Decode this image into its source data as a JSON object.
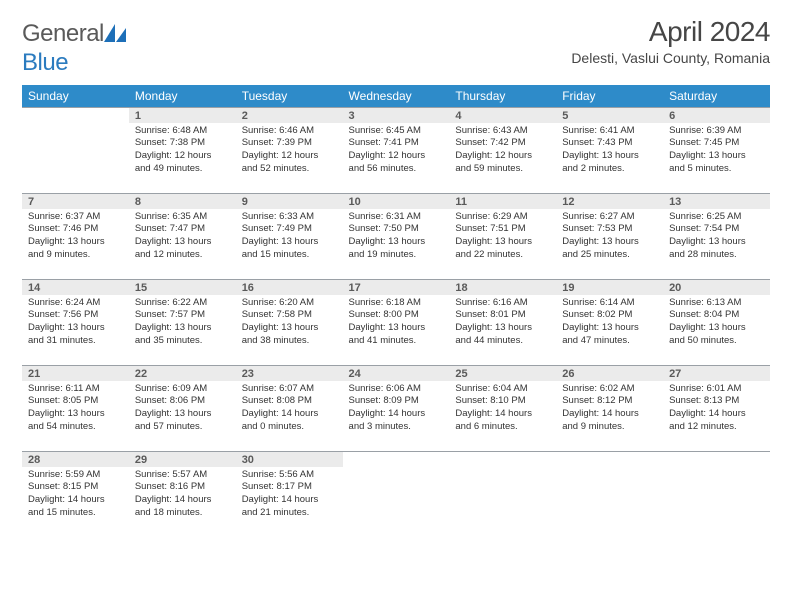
{
  "logo": {
    "text1": "General",
    "text2": "Blue"
  },
  "title": "April 2024",
  "subtitle": "Delesti, Vaslui County, Romania",
  "colors": {
    "header_bg": "#2e8bc9",
    "header_fg": "#ffffff",
    "daynum_bg": "#ebebeb",
    "daynum_border": "#9aa0a6",
    "text": "#333333",
    "title_color": "#464646"
  },
  "weekdays": [
    "Sunday",
    "Monday",
    "Tuesday",
    "Wednesday",
    "Thursday",
    "Friday",
    "Saturday"
  ],
  "weeks": [
    [
      {
        "n": "",
        "sunrise": "",
        "sunset": "",
        "daylight": ""
      },
      {
        "n": "1",
        "sunrise": "Sunrise: 6:48 AM",
        "sunset": "Sunset: 7:38 PM",
        "daylight": "Daylight: 12 hours and 49 minutes."
      },
      {
        "n": "2",
        "sunrise": "Sunrise: 6:46 AM",
        "sunset": "Sunset: 7:39 PM",
        "daylight": "Daylight: 12 hours and 52 minutes."
      },
      {
        "n": "3",
        "sunrise": "Sunrise: 6:45 AM",
        "sunset": "Sunset: 7:41 PM",
        "daylight": "Daylight: 12 hours and 56 minutes."
      },
      {
        "n": "4",
        "sunrise": "Sunrise: 6:43 AM",
        "sunset": "Sunset: 7:42 PM",
        "daylight": "Daylight: 12 hours and 59 minutes."
      },
      {
        "n": "5",
        "sunrise": "Sunrise: 6:41 AM",
        "sunset": "Sunset: 7:43 PM",
        "daylight": "Daylight: 13 hours and 2 minutes."
      },
      {
        "n": "6",
        "sunrise": "Sunrise: 6:39 AM",
        "sunset": "Sunset: 7:45 PM",
        "daylight": "Daylight: 13 hours and 5 minutes."
      }
    ],
    [
      {
        "n": "7",
        "sunrise": "Sunrise: 6:37 AM",
        "sunset": "Sunset: 7:46 PM",
        "daylight": "Daylight: 13 hours and 9 minutes."
      },
      {
        "n": "8",
        "sunrise": "Sunrise: 6:35 AM",
        "sunset": "Sunset: 7:47 PM",
        "daylight": "Daylight: 13 hours and 12 minutes."
      },
      {
        "n": "9",
        "sunrise": "Sunrise: 6:33 AM",
        "sunset": "Sunset: 7:49 PM",
        "daylight": "Daylight: 13 hours and 15 minutes."
      },
      {
        "n": "10",
        "sunrise": "Sunrise: 6:31 AM",
        "sunset": "Sunset: 7:50 PM",
        "daylight": "Daylight: 13 hours and 19 minutes."
      },
      {
        "n": "11",
        "sunrise": "Sunrise: 6:29 AM",
        "sunset": "Sunset: 7:51 PM",
        "daylight": "Daylight: 13 hours and 22 minutes."
      },
      {
        "n": "12",
        "sunrise": "Sunrise: 6:27 AM",
        "sunset": "Sunset: 7:53 PM",
        "daylight": "Daylight: 13 hours and 25 minutes."
      },
      {
        "n": "13",
        "sunrise": "Sunrise: 6:25 AM",
        "sunset": "Sunset: 7:54 PM",
        "daylight": "Daylight: 13 hours and 28 minutes."
      }
    ],
    [
      {
        "n": "14",
        "sunrise": "Sunrise: 6:24 AM",
        "sunset": "Sunset: 7:56 PM",
        "daylight": "Daylight: 13 hours and 31 minutes."
      },
      {
        "n": "15",
        "sunrise": "Sunrise: 6:22 AM",
        "sunset": "Sunset: 7:57 PM",
        "daylight": "Daylight: 13 hours and 35 minutes."
      },
      {
        "n": "16",
        "sunrise": "Sunrise: 6:20 AM",
        "sunset": "Sunset: 7:58 PM",
        "daylight": "Daylight: 13 hours and 38 minutes."
      },
      {
        "n": "17",
        "sunrise": "Sunrise: 6:18 AM",
        "sunset": "Sunset: 8:00 PM",
        "daylight": "Daylight: 13 hours and 41 minutes."
      },
      {
        "n": "18",
        "sunrise": "Sunrise: 6:16 AM",
        "sunset": "Sunset: 8:01 PM",
        "daylight": "Daylight: 13 hours and 44 minutes."
      },
      {
        "n": "19",
        "sunrise": "Sunrise: 6:14 AM",
        "sunset": "Sunset: 8:02 PM",
        "daylight": "Daylight: 13 hours and 47 minutes."
      },
      {
        "n": "20",
        "sunrise": "Sunrise: 6:13 AM",
        "sunset": "Sunset: 8:04 PM",
        "daylight": "Daylight: 13 hours and 50 minutes."
      }
    ],
    [
      {
        "n": "21",
        "sunrise": "Sunrise: 6:11 AM",
        "sunset": "Sunset: 8:05 PM",
        "daylight": "Daylight: 13 hours and 54 minutes."
      },
      {
        "n": "22",
        "sunrise": "Sunrise: 6:09 AM",
        "sunset": "Sunset: 8:06 PM",
        "daylight": "Daylight: 13 hours and 57 minutes."
      },
      {
        "n": "23",
        "sunrise": "Sunrise: 6:07 AM",
        "sunset": "Sunset: 8:08 PM",
        "daylight": "Daylight: 14 hours and 0 minutes."
      },
      {
        "n": "24",
        "sunrise": "Sunrise: 6:06 AM",
        "sunset": "Sunset: 8:09 PM",
        "daylight": "Daylight: 14 hours and 3 minutes."
      },
      {
        "n": "25",
        "sunrise": "Sunrise: 6:04 AM",
        "sunset": "Sunset: 8:10 PM",
        "daylight": "Daylight: 14 hours and 6 minutes."
      },
      {
        "n": "26",
        "sunrise": "Sunrise: 6:02 AM",
        "sunset": "Sunset: 8:12 PM",
        "daylight": "Daylight: 14 hours and 9 minutes."
      },
      {
        "n": "27",
        "sunrise": "Sunrise: 6:01 AM",
        "sunset": "Sunset: 8:13 PM",
        "daylight": "Daylight: 14 hours and 12 minutes."
      }
    ],
    [
      {
        "n": "28",
        "sunrise": "Sunrise: 5:59 AM",
        "sunset": "Sunset: 8:15 PM",
        "daylight": "Daylight: 14 hours and 15 minutes."
      },
      {
        "n": "29",
        "sunrise": "Sunrise: 5:57 AM",
        "sunset": "Sunset: 8:16 PM",
        "daylight": "Daylight: 14 hours and 18 minutes."
      },
      {
        "n": "30",
        "sunrise": "Sunrise: 5:56 AM",
        "sunset": "Sunset: 8:17 PM",
        "daylight": "Daylight: 14 hours and 21 minutes."
      },
      {
        "n": "",
        "sunrise": "",
        "sunset": "",
        "daylight": ""
      },
      {
        "n": "",
        "sunrise": "",
        "sunset": "",
        "daylight": ""
      },
      {
        "n": "",
        "sunrise": "",
        "sunset": "",
        "daylight": ""
      },
      {
        "n": "",
        "sunrise": "",
        "sunset": "",
        "daylight": ""
      }
    ]
  ]
}
